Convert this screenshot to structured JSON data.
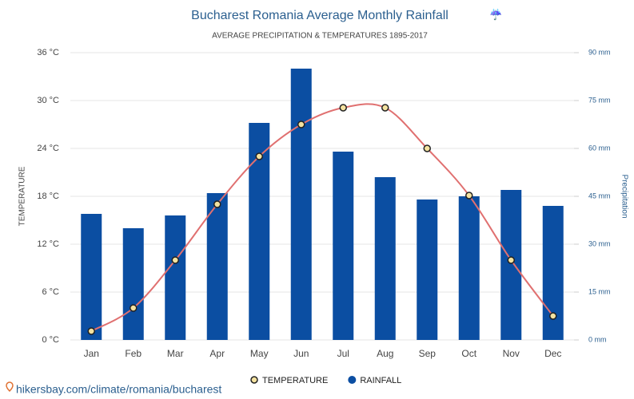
{
  "chart_data": {
    "type": "bar",
    "title": "Bucharest Romania Average Monthly Rainfall",
    "subtitle": "AVERAGE PRECIPITATION & TEMPERATURES 1895-2017",
    "ylabel": "TEMPERATURE",
    "y2label": "Precipitation",
    "categories": [
      "Jan",
      "Feb",
      "Mar",
      "Apr",
      "May",
      "Jun",
      "Jul",
      "Aug",
      "Sep",
      "Oct",
      "Nov",
      "Dec"
    ],
    "series": [
      {
        "name": "TEMPERATURE",
        "type": "line",
        "color": "#e07070",
        "values": [
          1.1,
          4,
          10,
          17,
          23,
          27,
          29.1,
          29.1,
          24,
          18.1,
          10,
          3
        ]
      },
      {
        "name": "RAINFALL",
        "type": "bar",
        "axis": "y2",
        "color": "#0b4ea2",
        "values": [
          39.5,
          35,
          39,
          46,
          68,
          85,
          59,
          51,
          44,
          45,
          47,
          42
        ]
      }
    ],
    "ylim": [
      0,
      36
    ],
    "yticks": [
      {
        "value": 0,
        "label": "0 °C"
      },
      {
        "value": 6,
        "label": "6 °C"
      },
      {
        "value": 12,
        "label": "12 °C"
      },
      {
        "value": 18,
        "label": "18 °C"
      },
      {
        "value": 24,
        "label": "24 °C"
      },
      {
        "value": 30,
        "label": "30 °C"
      },
      {
        "value": 36,
        "label": "36 °C"
      }
    ],
    "y2lim": [
      0,
      90
    ],
    "y2ticks": [
      {
        "value": 0,
        "label": "0 mm"
      },
      {
        "value": 15,
        "label": "15 mm"
      },
      {
        "value": 30,
        "label": "30 mm"
      },
      {
        "value": 45,
        "label": "45 mm"
      },
      {
        "value": 60,
        "label": "60 mm"
      },
      {
        "value": 75,
        "label": "75 mm"
      },
      {
        "value": 90,
        "label": "90 mm"
      }
    ],
    "grid": true,
    "legend": "bottom"
  },
  "source": "hikersbay.com/climate/romania/bucharest"
}
